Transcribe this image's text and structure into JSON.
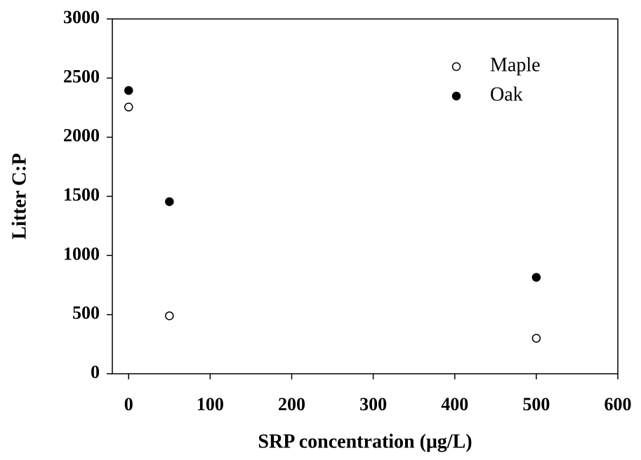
{
  "chart_data": {
    "type": "scatter",
    "xlabel": "SRP concentration (μg/L)",
    "ylabel": "Litter C:P",
    "xlim": [
      -20,
      600
    ],
    "xticks": [
      0,
      100,
      200,
      300,
      400,
      500,
      600
    ],
    "ylim": [
      0,
      3000
    ],
    "yticks": [
      0,
      500,
      1000,
      1500,
      2000,
      2500,
      3000
    ],
    "legend": "upper right",
    "series": [
      {
        "name": "Maple",
        "color": "#000000",
        "fill": "#ffffff",
        "x": [
          0,
          50,
          500
        ],
        "values": [
          2255,
          490,
          300
        ]
      },
      {
        "name": "Oak",
        "color": "#000000",
        "fill": "#000000",
        "x": [
          0,
          50,
          500
        ],
        "values": [
          2395,
          1455,
          815
        ]
      }
    ]
  }
}
